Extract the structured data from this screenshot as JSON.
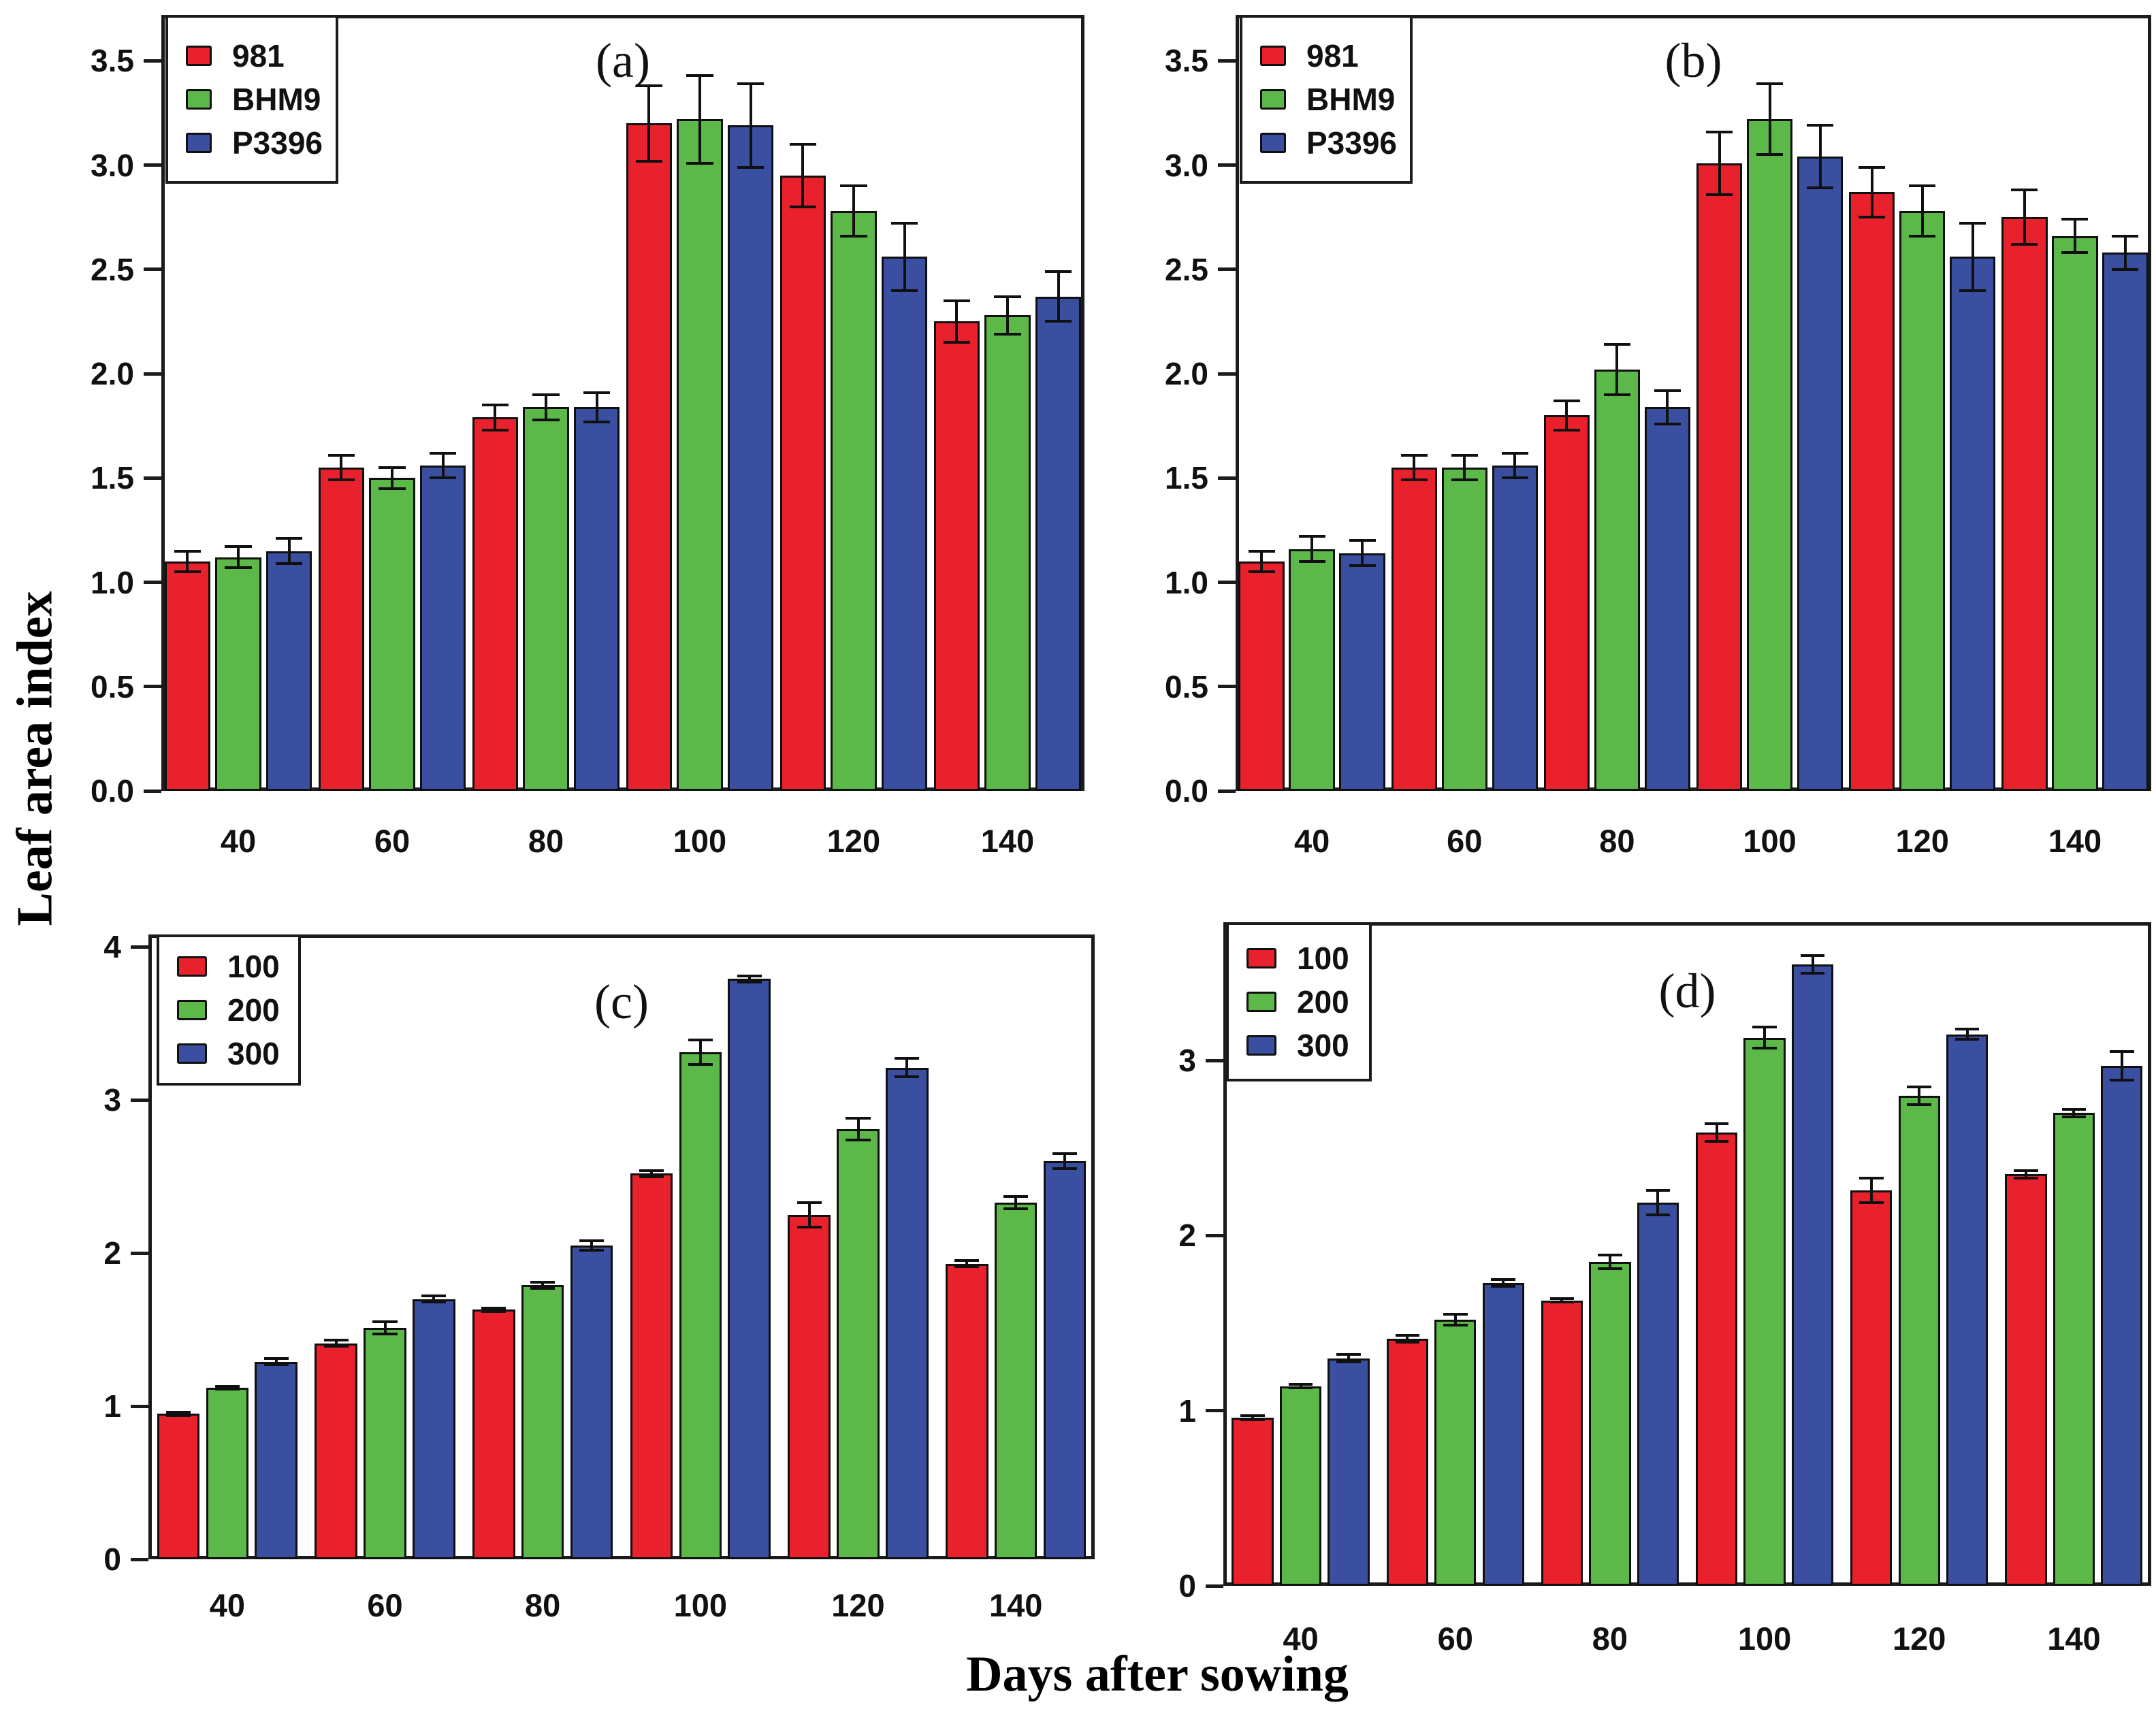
{
  "figure": {
    "y_axis_label": "Leaf area index",
    "x_axis_label": "Days after sowing"
  },
  "colors": {
    "red": "#e8212d",
    "green": "#5cb848",
    "blue": "#3a4fa0",
    "axis": "#1b1b1b"
  },
  "chart_data": [
    {
      "id": "a",
      "panel_label": "(a)",
      "type": "bar",
      "x_categories": [
        "40",
        "60",
        "80",
        "100",
        "120",
        "140"
      ],
      "ylim": [
        0,
        3.72
      ],
      "ytick_values": [
        0,
        0.5,
        1,
        1.5,
        2,
        2.5,
        3,
        3.5
      ],
      "ytick_labels": [
        "0.0",
        "0.5",
        "1.0",
        "1.5",
        "2.0",
        "2.5",
        "3.0",
        "3.5"
      ],
      "grid": false,
      "legend_position": "top-left",
      "series": [
        {
          "name": "981",
          "color": "#e8212d",
          "values": [
            1.1,
            1.55,
            1.79,
            3.2,
            2.95,
            2.25
          ],
          "errors": [
            0.05,
            0.06,
            0.06,
            0.18,
            0.15,
            0.1
          ]
        },
        {
          "name": "BHM9",
          "color": "#5cb848",
          "values": [
            1.12,
            1.5,
            1.84,
            3.22,
            2.78,
            2.28
          ],
          "errors": [
            0.05,
            0.05,
            0.06,
            0.21,
            0.12,
            0.09
          ]
        },
        {
          "name": "P3396",
          "color": "#3a4fa0",
          "values": [
            1.15,
            1.56,
            1.84,
            3.19,
            2.56,
            2.37
          ],
          "errors": [
            0.06,
            0.06,
            0.07,
            0.2,
            0.16,
            0.12
          ]
        }
      ]
    },
    {
      "id": "b",
      "panel_label": "(b)",
      "type": "bar",
      "x_categories": [
        "40",
        "60",
        "80",
        "100",
        "120",
        "140"
      ],
      "ylim": [
        0,
        3.72
      ],
      "ytick_values": [
        0,
        0.5,
        1,
        1.5,
        2,
        2.5,
        3,
        3.5
      ],
      "ytick_labels": [
        "0.0",
        "0.5",
        "1.0",
        "1.5",
        "2.0",
        "2.5",
        "3.0",
        "3.5"
      ],
      "grid": false,
      "legend_position": "top-left",
      "series": [
        {
          "name": "981",
          "color": "#e8212d",
          "values": [
            1.1,
            1.55,
            1.8,
            3.01,
            2.87,
            2.75
          ],
          "errors": [
            0.05,
            0.06,
            0.07,
            0.15,
            0.12,
            0.13
          ]
        },
        {
          "name": "BHM9",
          "color": "#5cb848",
          "values": [
            1.16,
            1.55,
            2.02,
            3.22,
            2.78,
            2.66
          ],
          "errors": [
            0.06,
            0.06,
            0.12,
            0.17,
            0.12,
            0.08
          ]
        },
        {
          "name": "P3396",
          "color": "#3a4fa0",
          "values": [
            1.14,
            1.56,
            1.84,
            3.04,
            2.56,
            2.58
          ],
          "errors": [
            0.06,
            0.06,
            0.08,
            0.15,
            0.16,
            0.08
          ]
        }
      ]
    },
    {
      "id": "c",
      "panel_label": "(c)",
      "type": "bar",
      "x_categories": [
        "40",
        "60",
        "80",
        "100",
        "120",
        "140"
      ],
      "ylim": [
        0,
        4.08
      ],
      "ytick_values": [
        0,
        1,
        2,
        3,
        4
      ],
      "ytick_labels": [
        "0",
        "1",
        "2",
        "3",
        "4"
      ],
      "grid": false,
      "legend_position": "top-left",
      "series": [
        {
          "name": "100",
          "color": "#e8212d",
          "values": [
            0.95,
            1.41,
            1.63,
            2.52,
            2.25,
            1.93
          ],
          "errors": [
            0.01,
            0.02,
            0.01,
            0.02,
            0.08,
            0.02
          ]
        },
        {
          "name": "200",
          "color": "#5cb848",
          "values": [
            1.12,
            1.51,
            1.79,
            3.31,
            2.81,
            2.33
          ],
          "errors": [
            0.01,
            0.04,
            0.02,
            0.08,
            0.07,
            0.04
          ]
        },
        {
          "name": "300",
          "color": "#3a4fa0",
          "values": [
            1.29,
            1.7,
            2.05,
            3.79,
            3.21,
            2.6
          ],
          "errors": [
            0.02,
            0.02,
            0.03,
            0.02,
            0.06,
            0.05
          ]
        }
      ]
    },
    {
      "id": "d",
      "panel_label": "(d)",
      "type": "bar",
      "x_categories": [
        "40",
        "60",
        "80",
        "100",
        "120",
        "140"
      ],
      "ylim": [
        0,
        3.79
      ],
      "ytick_values": [
        0,
        1,
        2,
        3
      ],
      "ytick_labels": [
        "0",
        "1",
        "2",
        "3"
      ],
      "grid": false,
      "legend_position": "top-left",
      "series": [
        {
          "name": "100",
          "color": "#e8212d",
          "values": [
            0.96,
            1.41,
            1.63,
            2.59,
            2.26,
            2.35
          ],
          "errors": [
            0.01,
            0.02,
            0.01,
            0.05,
            0.07,
            0.02
          ]
        },
        {
          "name": "200",
          "color": "#5cb848",
          "values": [
            1.14,
            1.52,
            1.85,
            3.13,
            2.8,
            2.7
          ],
          "errors": [
            0.01,
            0.03,
            0.04,
            0.06,
            0.05,
            0.02
          ]
        },
        {
          "name": "300",
          "color": "#3a4fa0",
          "values": [
            1.3,
            1.73,
            2.19,
            3.55,
            3.15,
            2.97
          ],
          "errors": [
            0.02,
            0.02,
            0.07,
            0.05,
            0.03,
            0.08
          ]
        }
      ]
    }
  ]
}
